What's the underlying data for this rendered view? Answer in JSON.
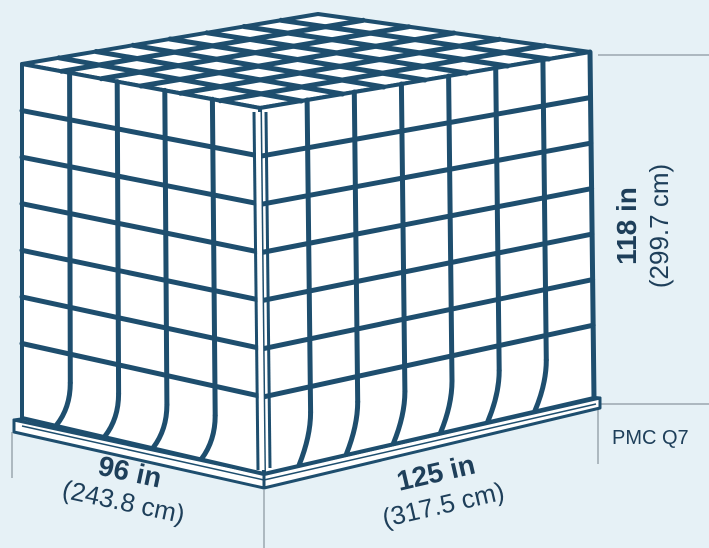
{
  "colors": {
    "background": "#e6f1f6",
    "net": "#1e4e6e",
    "cargo": "#ffffff",
    "guide": "#9aa6ae",
    "text": "#1e3f5a"
  },
  "dimensions": {
    "width": {
      "imperial": "96 in",
      "metric": "(243.8 cm)"
    },
    "length": {
      "imperial": "125 in",
      "metric": "(317.5 cm)"
    },
    "height": {
      "imperial": "118 in",
      "metric": "(299.7 cm)"
    }
  },
  "pallet_type": "PMC Q7"
}
